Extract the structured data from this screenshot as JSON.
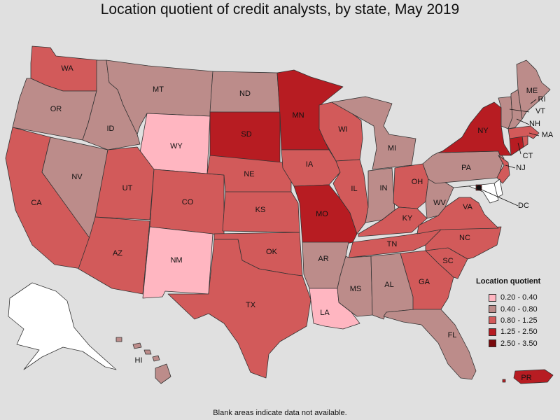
{
  "title": "Location quotient of credit analysts, by state, May 2019",
  "footnote": "Blank areas indicate data not available.",
  "legend": {
    "title": "Location quotient",
    "items": [
      {
        "label": "0.20 - 0.40",
        "color": "#ffb6c1"
      },
      {
        "label": "0.40 - 0.80",
        "color": "#bc8c8a"
      },
      {
        "label": "0.80 - 1.25",
        "color": "#d25a5a"
      },
      {
        "label": "1.25 - 2.50",
        "color": "#b71c22"
      },
      {
        "label": "2.50 - 3.50",
        "color": "#7a0a0d"
      }
    ]
  },
  "no_data_color": "#ffffff",
  "states": [
    {
      "abbr": "WA",
      "bin": 2
    },
    {
      "abbr": "OR",
      "bin": 1
    },
    {
      "abbr": "CA",
      "bin": 2
    },
    {
      "abbr": "NV",
      "bin": 1
    },
    {
      "abbr": "ID",
      "bin": 1
    },
    {
      "abbr": "MT",
      "bin": 1
    },
    {
      "abbr": "WY",
      "bin": 0
    },
    {
      "abbr": "UT",
      "bin": 2
    },
    {
      "abbr": "AZ",
      "bin": 2
    },
    {
      "abbr": "CO",
      "bin": 2
    },
    {
      "abbr": "NM",
      "bin": 0
    },
    {
      "abbr": "ND",
      "bin": 1
    },
    {
      "abbr": "SD",
      "bin": 3
    },
    {
      "abbr": "NE",
      "bin": 2
    },
    {
      "abbr": "KS",
      "bin": 2
    },
    {
      "abbr": "OK",
      "bin": 2
    },
    {
      "abbr": "TX",
      "bin": 2
    },
    {
      "abbr": "MN",
      "bin": 3
    },
    {
      "abbr": "IA",
      "bin": 2
    },
    {
      "abbr": "MO",
      "bin": 3
    },
    {
      "abbr": "AR",
      "bin": 1
    },
    {
      "abbr": "LA",
      "bin": 0
    },
    {
      "abbr": "WI",
      "bin": 2
    },
    {
      "abbr": "IL",
      "bin": 2
    },
    {
      "abbr": "MI",
      "bin": 1
    },
    {
      "abbr": "IN",
      "bin": 1
    },
    {
      "abbr": "OH",
      "bin": 2
    },
    {
      "abbr": "KY",
      "bin": 2
    },
    {
      "abbr": "TN",
      "bin": 2
    },
    {
      "abbr": "MS",
      "bin": 1
    },
    {
      "abbr": "AL",
      "bin": 1
    },
    {
      "abbr": "GA",
      "bin": 2
    },
    {
      "abbr": "FL",
      "bin": 1
    },
    {
      "abbr": "SC",
      "bin": 2
    },
    {
      "abbr": "NC",
      "bin": 2
    },
    {
      "abbr": "VA",
      "bin": 2
    },
    {
      "abbr": "WV",
      "bin": 1
    },
    {
      "abbr": "PA",
      "bin": 1
    },
    {
      "abbr": "NY",
      "bin": 3
    },
    {
      "abbr": "NJ",
      "bin": 2
    },
    {
      "abbr": "DE",
      "bin": null
    },
    {
      "abbr": "MD",
      "bin": null
    },
    {
      "abbr": "DC",
      "bin": 4
    },
    {
      "abbr": "CT",
      "bin": 3
    },
    {
      "abbr": "RI",
      "bin": 2
    },
    {
      "abbr": "MA",
      "bin": 2
    },
    {
      "abbr": "VT",
      "bin": 1
    },
    {
      "abbr": "NH",
      "bin": 1
    },
    {
      "abbr": "ME",
      "bin": 1
    },
    {
      "abbr": "AK",
      "bin": null
    },
    {
      "abbr": "HI",
      "bin": 1
    },
    {
      "abbr": "PR",
      "bin": 3
    }
  ]
}
